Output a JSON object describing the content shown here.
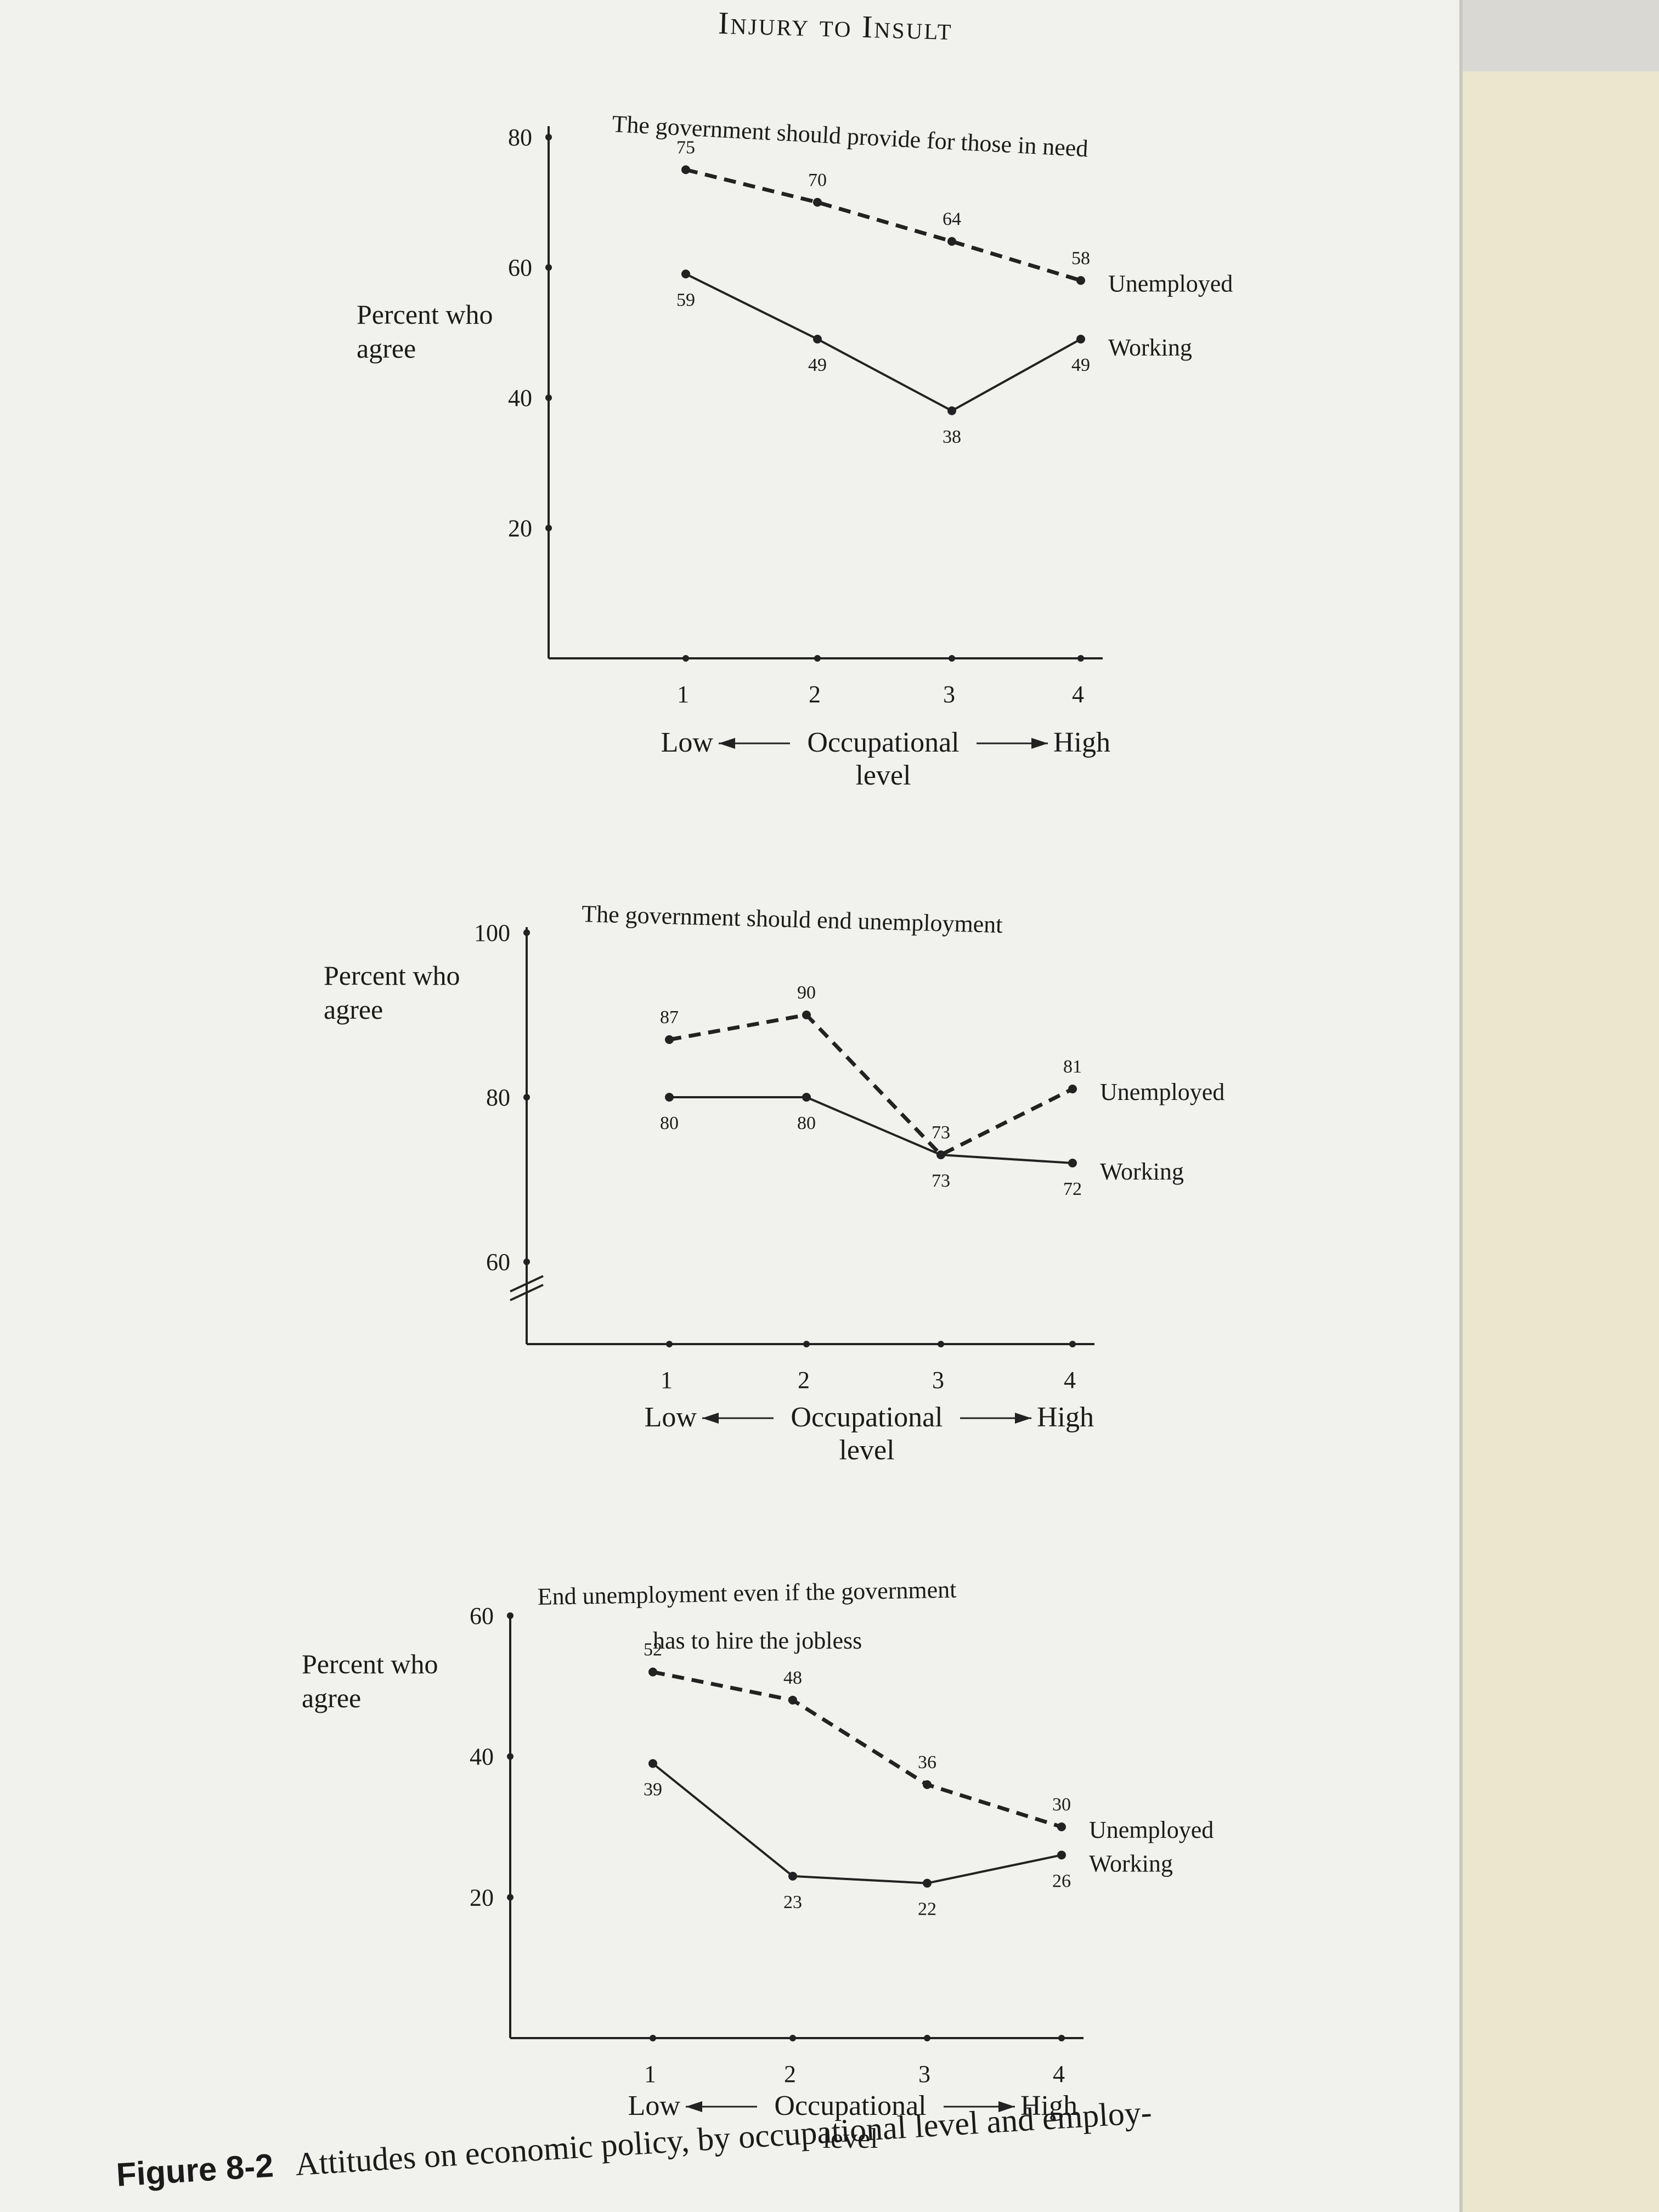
{
  "running_head": "Injury to Insult",
  "caption": {
    "label": "Figure 8-2",
    "text": "Attitudes on economic policy, by occupational level and employ-"
  },
  "chart_data": [
    {
      "type": "line",
      "title": "The government should provide for those in need",
      "ylabel": "Percent who agree",
      "x_axis": {
        "label": "Occupational level",
        "low": "Low",
        "high": "High"
      },
      "categories": [
        "1",
        "2",
        "3",
        "4"
      ],
      "yticks": [
        "20",
        "40",
        "60",
        "80"
      ],
      "ylim": [
        0,
        80
      ],
      "axis_break": false,
      "series": [
        {
          "name": "Unemployed",
          "values": [
            75,
            70,
            64,
            58
          ],
          "style": "dashed"
        },
        {
          "name": "Working",
          "values": [
            59,
            49,
            38,
            49
          ],
          "style": "solid"
        }
      ]
    },
    {
      "type": "line",
      "title": "The government should end unemployment",
      "ylabel": "Percent who agree",
      "x_axis": {
        "label": "Occupational level",
        "low": "Low",
        "high": "High"
      },
      "categories": [
        "1",
        "2",
        "3",
        "4"
      ],
      "yticks": [
        "60",
        "80",
        "100"
      ],
      "ylim": [
        50,
        100
      ],
      "axis_break": true,
      "series": [
        {
          "name": "Unemployed",
          "values": [
            87,
            90,
            73,
            81
          ],
          "style": "dashed"
        },
        {
          "name": "Working",
          "values": [
            80,
            80,
            73,
            72
          ],
          "style": "solid"
        }
      ]
    },
    {
      "type": "line",
      "title": "End unemployment even if the government has to hire the jobless",
      "ylabel": "Percent who agree",
      "x_axis": {
        "label": "Occupational level",
        "low": "Low",
        "high": "High"
      },
      "categories": [
        "1",
        "2",
        "3",
        "4"
      ],
      "yticks": [
        "20",
        "40",
        "60"
      ],
      "ylim": [
        0,
        60
      ],
      "axis_break": false,
      "series": [
        {
          "name": "Unemployed",
          "values": [
            52,
            48,
            36,
            30
          ],
          "style": "dashed"
        },
        {
          "name": "Working",
          "values": [
            39,
            23,
            22,
            26
          ],
          "style": "solid"
        }
      ]
    }
  ]
}
